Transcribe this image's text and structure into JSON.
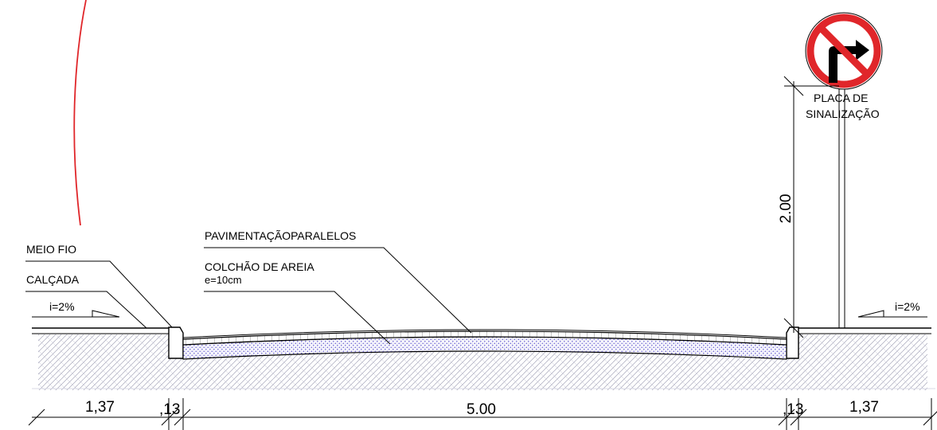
{
  "labels": {
    "meio_fio": "MEIO FIO",
    "calcada": "CALÇADA",
    "slope_left": "i=2%",
    "slope_right": "i=2%",
    "pavimentacao": "PAVIMENTAÇÃOPARALELOS",
    "colchao_line1": "COLCHÃO DE AREIA",
    "colchao_line2": "e=10cm",
    "placa_line1": "PLACA DE",
    "placa_line2": "SINALIZAÇÃO"
  },
  "dimensions": {
    "sidewalk_left": "1,37",
    "curb_left": ",13",
    "road": "5.00",
    "curb_right": ",13",
    "sidewalk_right": "1,37",
    "sign_height": "2.00"
  },
  "sign": {
    "icon": "no-right-turn-sign-icon",
    "ring_color": "#e0262a",
    "arrow_color": "#000000"
  },
  "colors": {
    "sand": "#7b74d6",
    "annotation_stroke": "#e0262a",
    "soil_hatch": "#a4a4b8"
  }
}
